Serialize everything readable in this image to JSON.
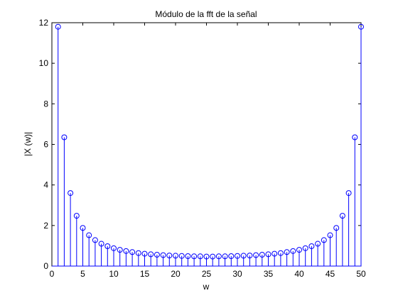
{
  "chart_data": {
    "type": "stem",
    "title": "Módulo de la fft de la señal",
    "xlabel": "w",
    "ylabel": "|X (w)|",
    "xlim": [
      0,
      50
    ],
    "ylim": [
      0,
      12
    ],
    "xticks": [
      0,
      5,
      10,
      15,
      20,
      25,
      30,
      35,
      40,
      45,
      50
    ],
    "yticks": [
      0,
      2,
      4,
      6,
      8,
      10,
      12
    ],
    "grid": false,
    "color": "#0000ff",
    "marker": "circle",
    "series": [
      {
        "x": [
          1,
          2,
          3,
          4,
          5,
          6,
          7,
          8,
          9,
          10,
          11,
          12,
          13,
          14,
          15,
          16,
          17,
          18,
          19,
          20,
          21,
          22,
          23,
          24,
          25,
          26,
          27,
          28,
          29,
          30,
          31,
          32,
          33,
          34,
          35,
          36,
          37,
          38,
          39,
          40,
          41,
          42,
          43,
          44,
          45,
          46,
          47,
          48,
          49,
          50
        ],
        "values": [
          11.8,
          6.35,
          3.6,
          2.48,
          1.88,
          1.52,
          1.28,
          1.1,
          0.98,
          0.88,
          0.8,
          0.74,
          0.69,
          0.64,
          0.61,
          0.58,
          0.56,
          0.54,
          0.52,
          0.51,
          0.5,
          0.49,
          0.48,
          0.48,
          0.47,
          0.47,
          0.48,
          0.48,
          0.49,
          0.5,
          0.51,
          0.52,
          0.54,
          0.56,
          0.58,
          0.61,
          0.64,
          0.69,
          0.74,
          0.8,
          0.88,
          0.98,
          1.1,
          1.28,
          1.52,
          1.88,
          2.48,
          3.6,
          6.35,
          11.8
        ]
      }
    ]
  }
}
